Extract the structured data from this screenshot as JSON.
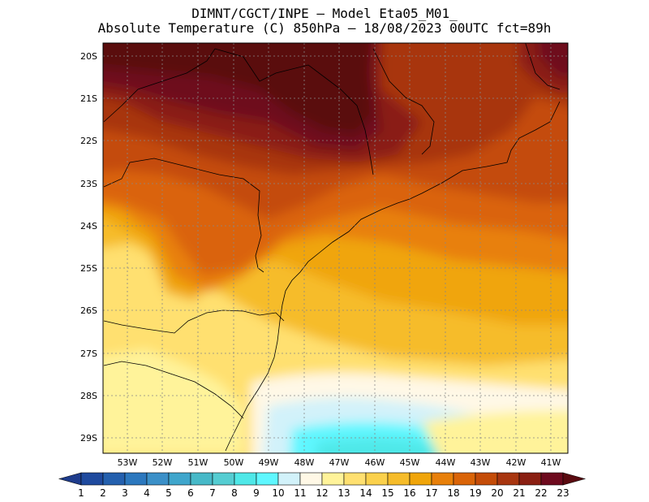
{
  "header": {
    "line1": "DIMNT/CGCT/INPE –  Model Eta05_M01_",
    "line2": "Absolute Temperature (C) 850hPa –  18/08/2023 00UTC fct=89h"
  },
  "map": {
    "lon_labels": [
      "53W",
      "52W",
      "51W",
      "50W",
      "49W",
      "48W",
      "47W",
      "46W",
      "45W",
      "44W",
      "43W",
      "42W",
      "41W"
    ],
    "lat_labels": [
      "20S",
      "21S",
      "22S",
      "23S",
      "24S",
      "25S",
      "26S",
      "27S",
      "28S",
      "29S"
    ]
  },
  "colorbar": {
    "labels": [
      "1",
      "2",
      "3",
      "4",
      "5",
      "6",
      "7",
      "8",
      "9",
      "10",
      "11",
      "12",
      "13",
      "14",
      "15",
      "16",
      "17",
      "18",
      "19",
      "20",
      "21",
      "22",
      "23"
    ],
    "colors": [
      "#1e3c8c",
      "#1f4a9e",
      "#2460ae",
      "#2c78be",
      "#3b90c8",
      "#3fa6cc",
      "#47b9c8",
      "#55cdd2",
      "#4fe8e8",
      "#5ff7ff",
      "#d2f2fa",
      "#fff8e6",
      "#fff39a",
      "#ffe070",
      "#fbd14c",
      "#f6bc2a",
      "#f0a50a",
      "#e8800a",
      "#da6408",
      "#c44c08",
      "#a83610",
      "#8a1f12",
      "#6e0a1e",
      "#5a0a10"
    ]
  }
}
